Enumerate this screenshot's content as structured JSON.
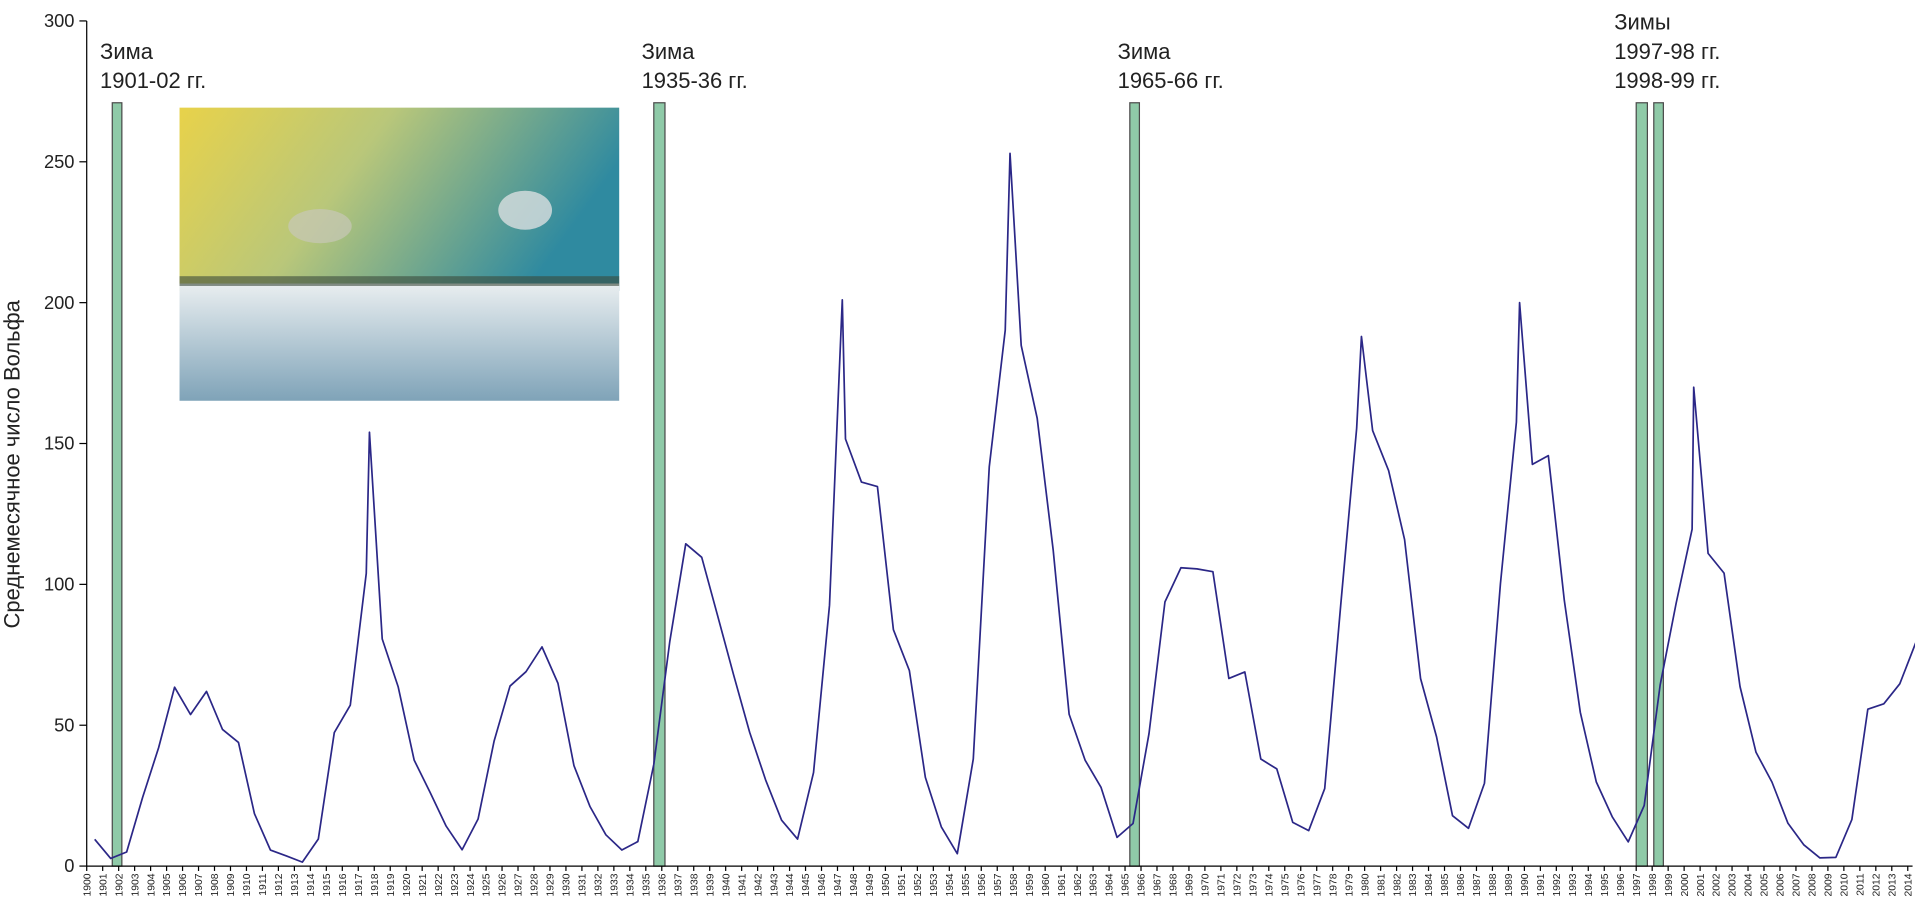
{
  "chart_data": {
    "type": "line",
    "ylabel": "Среднемесячное число Вольфа",
    "x": [
      1900.5,
      1901.5,
      1902.5,
      1903.5,
      1904.5,
      1905.5,
      1906.5,
      1907.5,
      1908.5,
      1909.5,
      1910.5,
      1911.5,
      1912.5,
      1913.5,
      1914.5,
      1915.5,
      1916.5,
      1917.5,
      1917.7,
      1918.5,
      1919.5,
      1920.5,
      1921.5,
      1922.5,
      1923.5,
      1924.5,
      1925.5,
      1926.5,
      1927.5,
      1928.5,
      1929.5,
      1930.5,
      1931.5,
      1932.5,
      1933.5,
      1934.5,
      1935.5,
      1936.5,
      1937.5,
      1938.5,
      1939.5,
      1940.5,
      1941.5,
      1942.5,
      1943.5,
      1944.5,
      1945.5,
      1946.5,
      1947.3,
      1947.5,
      1948.5,
      1949.5,
      1950.5,
      1951.5,
      1952.5,
      1953.5,
      1954.5,
      1955.5,
      1956.5,
      1957.5,
      1957.8,
      1958.5,
      1959.5,
      1960.5,
      1961.5,
      1962.5,
      1963.5,
      1964.5,
      1965.5,
      1966.5,
      1967.5,
      1968.5,
      1969.5,
      1970.5,
      1971.5,
      1972.5,
      1973.5,
      1974.5,
      1975.5,
      1976.5,
      1977.5,
      1978.5,
      1979.5,
      1979.8,
      1980.5,
      1981.5,
      1982.5,
      1983.5,
      1984.5,
      1985.5,
      1986.5,
      1987.5,
      1988.5,
      1989.5,
      1989.7,
      1990.5,
      1991.5,
      1992.5,
      1993.5,
      1994.5,
      1995.5,
      1996.5,
      1997.5,
      1998.5,
      1999.5,
      2000.5,
      2000.6,
      2001.5,
      2002.5,
      2003.5,
      2004.5,
      2005.5,
      2006.5,
      2007.5,
      2008.5,
      2009.5,
      2010.5,
      2011.5,
      2012.5,
      2013.5,
      2014.5
    ],
    "values": [
      9.5,
      2.7,
      5.0,
      24.4,
      42.0,
      63.5,
      53.8,
      62.0,
      48.5,
      43.9,
      18.6,
      5.7,
      3.6,
      1.4,
      9.6,
      47.4,
      57.1,
      103.9,
      154,
      80.6,
      63.6,
      37.6,
      26.1,
      14.2,
      5.8,
      16.7,
      44.3,
      63.9,
      69.0,
      77.8,
      64.9,
      35.7,
      21.2,
      11.1,
      5.7,
      8.7,
      36.1,
      79.7,
      114.4,
      109.6,
      88.8,
      67.8,
      47.5,
      30.6,
      16.3,
      9.6,
      33.2,
      92.6,
      201,
      151.6,
      136.3,
      134.7,
      83.9,
      69.4,
      31.5,
      13.9,
      4.4,
      38.0,
      141.7,
      190.2,
      253,
      184.8,
      159.0,
      112.3,
      53.9,
      37.6,
      27.9,
      10.2,
      15.1,
      47.0,
      93.8,
      105.9,
      105.5,
      104.5,
      66.6,
      68.9,
      38.0,
      34.5,
      15.5,
      12.6,
      27.5,
      92.5,
      155.4,
      188,
      154.6,
      140.4,
      115.9,
      66.6,
      45.9,
      17.9,
      13.4,
      29.4,
      100.2,
      157.6,
      200,
      142.6,
      145.7,
      94.3,
      54.6,
      29.9,
      17.5,
      8.6,
      21.5,
      64.3,
      93.3,
      119.6,
      170,
      111.0,
      104.0,
      63.7,
      40.4,
      29.8,
      15.2,
      7.5,
      2.9,
      3.1,
      16.5,
      55.7,
      57.6,
      64.7,
      79.3
    ],
    "color": "#2b2787",
    "xlim": [
      1900,
      2014.3
    ],
    "xticks": [
      1900,
      1901,
      1902,
      1903,
      1904,
      1905,
      1906,
      1907,
      1908,
      1909,
      1910,
      1911,
      1912,
      1913,
      1914,
      1915,
      1916,
      1917,
      1918,
      1919,
      1920,
      1921,
      1922,
      1923,
      1924,
      1925,
      1926,
      1927,
      1928,
      1929,
      1930,
      1931,
      1932,
      1933,
      1934,
      1935,
      1936,
      1937,
      1938,
      1939,
      1940,
      1941,
      1942,
      1943,
      1944,
      1945,
      1946,
      1947,
      1948,
      1949,
      1950,
      1951,
      1952,
      1953,
      1954,
      1955,
      1956,
      1957,
      1958,
      1959,
      1960,
      1961,
      1962,
      1963,
      1964,
      1965,
      1966,
      1967,
      1968,
      1969,
      1970,
      1971,
      1972,
      1973,
      1974,
      1975,
      1976,
      1977,
      1978,
      1979,
      1980,
      1981,
      1982,
      1983,
      1984,
      1985,
      1986,
      1987,
      1988,
      1989,
      1990,
      1991,
      1992,
      1993,
      1994,
      1995,
      1996,
      1997,
      1998,
      1999,
      2000,
      2001,
      2002,
      2003,
      2004,
      2005,
      2006,
      2007,
      2008,
      2009,
      2010,
      2011,
      2012,
      2013,
      2014
    ],
    "ylim": [
      0,
      300
    ],
    "yticks": [
      0,
      50,
      100,
      150,
      200,
      250,
      300
    ],
    "highlight_color": "#8fcaa8",
    "highlights": [
      {
        "lines": [
          "Зима",
          "1901-02 гг."
        ],
        "spans": [
          [
            1901.6,
            1902.2
          ]
        ]
      },
      {
        "lines": [
          "Зима",
          "1935-36 гг."
        ],
        "spans": [
          [
            1935.5,
            1936.2
          ]
        ]
      },
      {
        "lines": [
          "Зима",
          "1965-66 гг."
        ],
        "spans": [
          [
            1965.3,
            1965.9
          ]
        ]
      },
      {
        "lines": [
          "Зимы",
          "1997-98 гг.",
          "1998-99 гг."
        ],
        "spans": [
          [
            1997.0,
            1997.7
          ],
          [
            1998.1,
            1998.7
          ]
        ]
      }
    ]
  }
}
